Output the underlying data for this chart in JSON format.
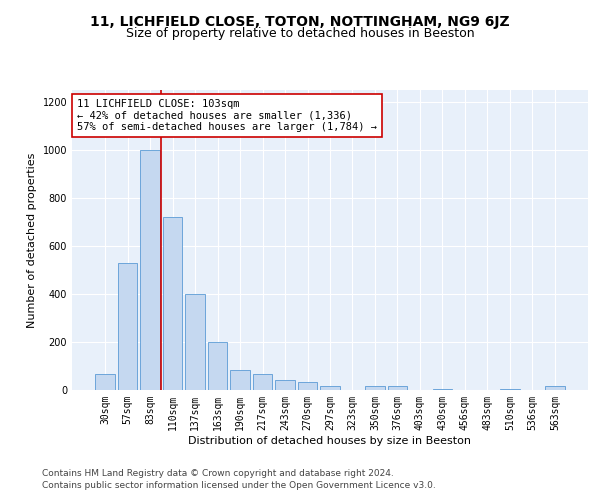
{
  "title": "11, LICHFIELD CLOSE, TOTON, NOTTINGHAM, NG9 6JZ",
  "subtitle": "Size of property relative to detached houses in Beeston",
  "xlabel": "Distribution of detached houses by size in Beeston",
  "ylabel": "Number of detached properties",
  "bar_labels": [
    "30sqm",
    "57sqm",
    "83sqm",
    "110sqm",
    "137sqm",
    "163sqm",
    "190sqm",
    "217sqm",
    "243sqm",
    "270sqm",
    "297sqm",
    "323sqm",
    "350sqm",
    "376sqm",
    "403sqm",
    "430sqm",
    "456sqm",
    "483sqm",
    "510sqm",
    "536sqm",
    "563sqm"
  ],
  "bar_values": [
    65,
    530,
    1000,
    720,
    400,
    200,
    85,
    65,
    42,
    32,
    18,
    0,
    18,
    15,
    0,
    5,
    0,
    0,
    5,
    0,
    15
  ],
  "bar_color": "#c5d8f0",
  "bar_edge_color": "#5b9bd5",
  "vline_color": "#cc0000",
  "annotation_text": "11 LICHFIELD CLOSE: 103sqm\n← 42% of detached houses are smaller (1,336)\n57% of semi-detached houses are larger (1,784) →",
  "annotation_box_color": "#ffffff",
  "annotation_box_edge": "#cc0000",
  "ylim": [
    0,
    1250
  ],
  "yticks": [
    0,
    200,
    400,
    600,
    800,
    1000,
    1200
  ],
  "footer_line1": "Contains HM Land Registry data © Crown copyright and database right 2024.",
  "footer_line2": "Contains public sector information licensed under the Open Government Licence v3.0.",
  "bg_color": "#e8f0fa",
  "title_fontsize": 10,
  "subtitle_fontsize": 9,
  "axis_label_fontsize": 8,
  "tick_fontsize": 7,
  "annotation_fontsize": 7.5,
  "footer_fontsize": 6.5
}
